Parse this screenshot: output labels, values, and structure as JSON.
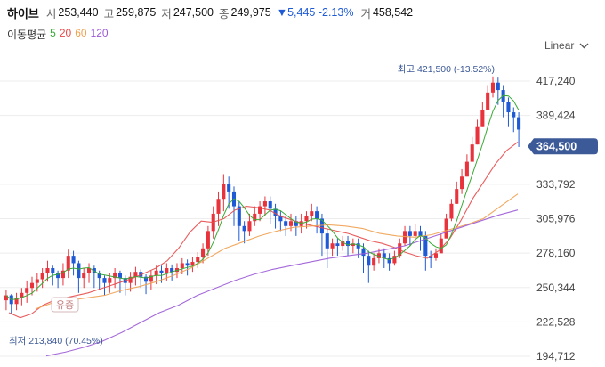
{
  "header": {
    "name": "하이브",
    "open_label": "시",
    "open": "253,440",
    "high_label": "고",
    "high": "259,875",
    "low_label": "저",
    "low": "247,500",
    "close_label": "종",
    "close": "249,975",
    "change": "▼5,445 -2.13%",
    "volume_label": "거",
    "volume": "458,542"
  },
  "ma_legend": {
    "label": "이동평균",
    "items": [
      {
        "text": "5",
        "color": "#3aaa35"
      },
      {
        "text": "20",
        "color": "#e84a4a"
      },
      {
        "text": "60",
        "color": "#f0a050"
      },
      {
        "text": "120",
        "color": "#9b59d6"
      }
    ]
  },
  "scale_selector": {
    "label": "Linear",
    "icon": "chevron-down-icon"
  },
  "colors": {
    "up": "#e8333c",
    "down": "#1e5ad6",
    "grid": "#ededed",
    "price_tag": "#3d5a98"
  },
  "chart_data": {
    "type": "candlestick",
    "y_ticks": [
      "417,240",
      "389,424",
      "333,792",
      "305,976",
      "278,160",
      "250,344",
      "222,528",
      "194,712"
    ],
    "ylim": [
      194712,
      430000
    ],
    "grid": true,
    "current_price": {
      "label": "364,500",
      "value": 364500
    },
    "annotations": {
      "high": {
        "text": "최고 421,500 (-13.52%)",
        "value": 421500
      },
      "low": {
        "text": "최저 213,840 (70.45%)",
        "value": 213840
      },
      "event": {
        "text": "유증"
      }
    },
    "series": [
      {
        "name": "5",
        "color": "#3aaa35",
        "values": []
      },
      {
        "name": "20",
        "color": "#e84a4a",
        "values": [
          230000,
          226000,
          229000,
          236000,
          240000,
          242000,
          244000,
          246000,
          249000,
          252000,
          255000,
          258000,
          262000,
          266000,
          272000,
          282000,
          295000,
          304000,
          303000,
          306000,
          313000,
          316000,
          315000,
          313000,
          308000,
          305000,
          302000,
          300000,
          298000,
          296000,
          294000,
          291000,
          288000,
          286000,
          283000,
          279000,
          276000,
          274000,
          280000,
          290000,
          305000,
          322000,
          336000,
          350000,
          361000,
          368000
        ]
      },
      {
        "name": "60",
        "color": "#f0a050",
        "values": [
          233000,
          238000,
          240000,
          242000,
          244000,
          248000,
          251000,
          255000,
          260000,
          266000,
          274000,
          282000,
          287000,
          292000,
          296000,
          299000,
          300000,
          301000,
          300000,
          298000,
          294000,
          292000,
          291000,
          293000,
          297000,
          301000,
          306000,
          316000,
          326000
        ]
      },
      {
        "name": "120",
        "color": "#9b59d6",
        "values": [
          195000,
          198000,
          202000,
          207000,
          214000,
          222000,
          230000,
          236000,
          244000,
          250000,
          256000,
          261000,
          265000,
          268000,
          271000,
          274000,
          276000,
          278000,
          281000,
          284000,
          289000,
          294000,
          299000,
          304000,
          309000,
          313000
        ]
      }
    ],
    "candles": [
      [
        240,
        244,
        234,
        232,
        248
      ],
      [
        244,
        237,
        233,
        229,
        245
      ],
      [
        237,
        242,
        239,
        232,
        246
      ],
      [
        242,
        246,
        238,
        236,
        250
      ],
      [
        246,
        250,
        241,
        238,
        256
      ],
      [
        250,
        254,
        248,
        244,
        259
      ],
      [
        254,
        257,
        250,
        247,
        262
      ],
      [
        257,
        262,
        255,
        250,
        266
      ],
      [
        262,
        266,
        259,
        255,
        272
      ],
      [
        266,
        262,
        256,
        252,
        268
      ],
      [
        262,
        258,
        254,
        250,
        264
      ],
      [
        258,
        264,
        257,
        252,
        270
      ],
      [
        264,
        276,
        262,
        258,
        281
      ],
      [
        276,
        270,
        264,
        260,
        280
      ],
      [
        270,
        258,
        252,
        246,
        272
      ],
      [
        258,
        262,
        255,
        250,
        266
      ],
      [
        262,
        266,
        258,
        254,
        270
      ],
      [
        266,
        262,
        255,
        250,
        268
      ],
      [
        262,
        258,
        252,
        248,
        264
      ],
      [
        258,
        254,
        248,
        244,
        260
      ],
      [
        254,
        258,
        250,
        246,
        262
      ],
      [
        258,
        262,
        253,
        250,
        266
      ],
      [
        262,
        258,
        250,
        246,
        264
      ],
      [
        258,
        254,
        248,
        244,
        260
      ],
      [
        254,
        259,
        251,
        247,
        263
      ],
      [
        259,
        263,
        256,
        252,
        267
      ],
      [
        263,
        259,
        254,
        250,
        265
      ],
      [
        259,
        255,
        249,
        245,
        261
      ],
      [
        255,
        260,
        252,
        248,
        264
      ],
      [
        260,
        264,
        257,
        253,
        268
      ],
      [
        264,
        262,
        258,
        254,
        268
      ],
      [
        262,
        266,
        260,
        256,
        270
      ],
      [
        266,
        263,
        259,
        256,
        269
      ],
      [
        263,
        266,
        261,
        258,
        270
      ],
      [
        266,
        270,
        264,
        261,
        274
      ],
      [
        270,
        268,
        264,
        260,
        273
      ],
      [
        268,
        271,
        266,
        263,
        275
      ],
      [
        271,
        275,
        269,
        266,
        279
      ],
      [
        275,
        282,
        273,
        270,
        286
      ],
      [
        282,
        296,
        280,
        276,
        300
      ],
      [
        296,
        310,
        294,
        290,
        316
      ],
      [
        310,
        322,
        306,
        300,
        328
      ],
      [
        322,
        334,
        318,
        312,
        342
      ],
      [
        334,
        328,
        320,
        314,
        340
      ],
      [
        328,
        316,
        308,
        300,
        332
      ],
      [
        316,
        300,
        294,
        288,
        320
      ],
      [
        300,
        296,
        292,
        286,
        304
      ],
      [
        296,
        304,
        298,
        292,
        310
      ],
      [
        304,
        310,
        306,
        300,
        316
      ],
      [
        310,
        316,
        310,
        304,
        320
      ],
      [
        316,
        320,
        314,
        308,
        324
      ],
      [
        320,
        314,
        308,
        302,
        324
      ],
      [
        314,
        308,
        304,
        298,
        318
      ],
      [
        308,
        304,
        300,
        296,
        312
      ],
      [
        304,
        300,
        296,
        292,
        308
      ],
      [
        300,
        304,
        300,
        296,
        310
      ],
      [
        304,
        300,
        296,
        292,
        308
      ],
      [
        300,
        304,
        298,
        294,
        310
      ],
      [
        304,
        308,
        302,
        298,
        312
      ],
      [
        308,
        312,
        308,
        304,
        318
      ],
      [
        312,
        306,
        300,
        294,
        316
      ],
      [
        306,
        294,
        286,
        276,
        310
      ],
      [
        294,
        282,
        276,
        266,
        298
      ],
      [
        282,
        286,
        282,
        276,
        290
      ],
      [
        286,
        284,
        280,
        276,
        290
      ],
      [
        284,
        288,
        284,
        280,
        292
      ],
      [
        288,
        284,
        280,
        276,
        292
      ],
      [
        284,
        286,
        282,
        278,
        290
      ],
      [
        286,
        282,
        278,
        274,
        290
      ],
      [
        282,
        276,
        270,
        262,
        286
      ],
      [
        276,
        268,
        262,
        254,
        280
      ],
      [
        268,
        274,
        270,
        264,
        278
      ],
      [
        274,
        278,
        274,
        270,
        282
      ],
      [
        278,
        274,
        270,
        266,
        282
      ],
      [
        274,
        270,
        268,
        264,
        278
      ],
      [
        270,
        276,
        272,
        268,
        280
      ],
      [
        276,
        286,
        280,
        274,
        290
      ],
      [
        286,
        296,
        290,
        284,
        300
      ],
      [
        296,
        292,
        288,
        284,
        300
      ],
      [
        292,
        296,
        292,
        288,
        302
      ],
      [
        296,
        292,
        286,
        280,
        300
      ],
      [
        292,
        276,
        270,
        264,
        296
      ],
      [
        276,
        274,
        270,
        266,
        280
      ],
      [
        274,
        278,
        276,
        272,
        282
      ],
      [
        278,
        290,
        286,
        280,
        294
      ],
      [
        290,
        306,
        300,
        294,
        310
      ],
      [
        306,
        318,
        312,
        304,
        322
      ],
      [
        318,
        330,
        326,
        318,
        336
      ],
      [
        330,
        340,
        334,
        326,
        346
      ],
      [
        340,
        352,
        346,
        340,
        358
      ],
      [
        352,
        366,
        360,
        352,
        372
      ],
      [
        366,
        380,
        374,
        366,
        386
      ],
      [
        380,
        394,
        388,
        380,
        400
      ],
      [
        394,
        408,
        402,
        394,
        414
      ],
      [
        408,
        416,
        412,
        404,
        421
      ],
      [
        416,
        410,
        404,
        398,
        420
      ],
      [
        410,
        400,
        394,
        388,
        414
      ],
      [
        400,
        392,
        386,
        380,
        404
      ],
      [
        392,
        388,
        382,
        376,
        396
      ],
      [
        388,
        378,
        372,
        364,
        392
      ]
    ]
  }
}
